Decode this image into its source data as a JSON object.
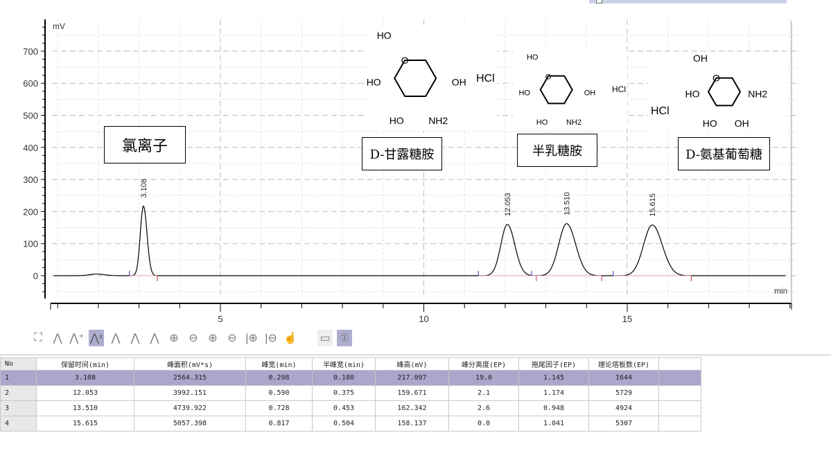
{
  "chart_data": {
    "type": "line",
    "title": "",
    "xlabel": "min",
    "ylabel": "mV",
    "xlim": [
      0.85,
      19.0
    ],
    "ylim": [
      -60,
      800
    ],
    "x_ticks": [
      5,
      10,
      15
    ],
    "y_ticks": [
      0,
      100,
      200,
      300,
      400,
      500,
      600,
      700
    ],
    "grid": true,
    "peaks": [
      {
        "rt": 3.108,
        "height": 217.097,
        "half_width": 0.18,
        "label": "3.108"
      },
      {
        "rt": 12.053,
        "height": 159.671,
        "half_width": 0.375,
        "label": "12.053"
      },
      {
        "rt": 13.51,
        "height": 162.342,
        "half_width": 0.453,
        "label": "13.510"
      },
      {
        "rt": 15.615,
        "height": 158.137,
        "half_width": 0.504,
        "label": "15.615"
      }
    ],
    "minor_bumps": [
      {
        "rt": 1.95,
        "height": 5
      }
    ],
    "annotations": [
      "氯离子",
      "D-甘露糖胺",
      "半乳糖胺",
      "D-氨基葡萄糖"
    ],
    "colors": {
      "trace": "#000000",
      "grid": "#c8c8c8",
      "baseline_marker_start": "#3333cc",
      "baseline_marker_end": "#cc3333"
    }
  },
  "structures": [
    {
      "labels": {
        "ho_top": "HO",
        "ho_left": "HO",
        "oh_right": "OH",
        "o_ring": "O",
        "ho_bottom": "HO",
        "nh2": "NH2"
      },
      "salt": "HCl"
    },
    {
      "labels": {
        "ho_top": "HO",
        "ho_left": "HO",
        "oh_right": "OH",
        "o_ring": "O",
        "ho_bottom": "HO",
        "nh2": "NH2"
      },
      "salt": "HCl"
    },
    {
      "labels": {
        "ho_top": "OH",
        "ho_left": "HO",
        "oh_right": "NH2",
        "o_ring": "O",
        "ho_bottom": "HO",
        "nh2": "OH"
      },
      "salt": "HCl"
    }
  ],
  "toolbar": {
    "icons": [
      "fit-screen-icon",
      "peak-icon",
      "add-peak-icon",
      "delete-peak-icon",
      "peak-baseline-icon",
      "peak-area-icon",
      "split-peak-icon",
      "zoom-in-icon",
      "zoom-out-icon",
      "zoom-in-y-icon",
      "zoom-out-y-icon",
      "zoom-in-x-icon",
      "zoom-out-x-icon",
      "pan-hand-icon",
      "ruler-icon",
      "channel-one-icon"
    ],
    "active": "delete-peak-icon"
  },
  "table": {
    "headers": [
      "No",
      "保留时间(min)",
      "峰面积(mV*s)",
      "峰宽(min)",
      "半峰宽(min)",
      "峰高(mV)",
      "峰分离度(EP)",
      "拖尾因子(EP)",
      "理论塔板数(EP)"
    ],
    "rows": [
      [
        "1",
        "3.108",
        "2564.315",
        "0.298",
        "0.180",
        "217.097",
        "19.0",
        "1.145",
        "1644"
      ],
      [
        "2",
        "12.053",
        "3992.151",
        "0.590",
        "0.375",
        "159.671",
        "2.1",
        "1.174",
        "5729"
      ],
      [
        "3",
        "13.510",
        "4739.922",
        "0.728",
        "0.453",
        "162.342",
        "2.6",
        "0.948",
        "4924"
      ],
      [
        "4",
        "15.615",
        "5057.398",
        "0.817",
        "0.504",
        "158.137",
        "0.0",
        "1.041",
        "5307"
      ]
    ],
    "selected_row": 0
  }
}
